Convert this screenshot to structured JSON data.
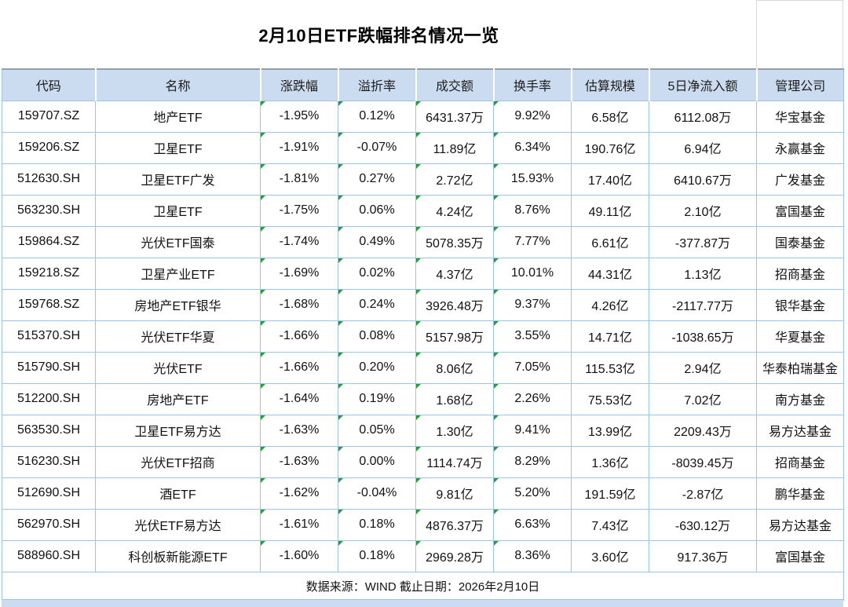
{
  "chart_data": {
    "type": "table",
    "title": "2月10日ETF跌幅排名情况一览",
    "source_note": "数据来源：WIND 截止日期：2026年2月10日",
    "columns": [
      "代码",
      "名称",
      "涨跌幅",
      "溢折率",
      "成交额",
      "换手率",
      "估算规模",
      "5日净流入额",
      "管理公司"
    ],
    "rows": [
      [
        "159707.SZ",
        "地产ETF",
        "-1.95%",
        "0.12%",
        "6431.37万",
        "9.92%",
        "6.58亿",
        "6112.08万",
        "华宝基金"
      ],
      [
        "159206.SZ",
        "卫星ETF",
        "-1.91%",
        "-0.07%",
        "11.89亿",
        "6.34%",
        "190.76亿",
        "6.94亿",
        "永赢基金"
      ],
      [
        "512630.SH",
        "卫星ETF广发",
        "-1.81%",
        "0.27%",
        "2.72亿",
        "15.93%",
        "17.40亿",
        "6410.67万",
        "广发基金"
      ],
      [
        "563230.SH",
        "卫星ETF",
        "-1.75%",
        "0.06%",
        "4.24亿",
        "8.76%",
        "49.11亿",
        "2.10亿",
        "富国基金"
      ],
      [
        "159864.SZ",
        "光伏ETF国泰",
        "-1.74%",
        "0.49%",
        "5078.35万",
        "7.77%",
        "6.61亿",
        "-377.87万",
        "国泰基金"
      ],
      [
        "159218.SZ",
        "卫星产业ETF",
        "-1.69%",
        "0.02%",
        "4.37亿",
        "10.01%",
        "44.31亿",
        "1.13亿",
        "招商基金"
      ],
      [
        "159768.SZ",
        "房地产ETF银华",
        "-1.68%",
        "0.24%",
        "3926.48万",
        "9.37%",
        "4.26亿",
        "-2117.77万",
        "银华基金"
      ],
      [
        "515370.SH",
        "光伏ETF华夏",
        "-1.66%",
        "0.08%",
        "5157.98万",
        "3.55%",
        "14.71亿",
        "-1038.65万",
        "华夏基金"
      ],
      [
        "515790.SH",
        "光伏ETF",
        "-1.66%",
        "0.20%",
        "8.06亿",
        "7.05%",
        "115.53亿",
        "2.94亿",
        "华泰柏瑞基金"
      ],
      [
        "512200.SH",
        "房地产ETF",
        "-1.64%",
        "0.19%",
        "1.68亿",
        "2.26%",
        "75.53亿",
        "7.02亿",
        "南方基金"
      ],
      [
        "563530.SH",
        "卫星ETF易方达",
        "-1.63%",
        "0.05%",
        "1.30亿",
        "9.41%",
        "13.99亿",
        "2209.43万",
        "易方达基金"
      ],
      [
        "516230.SH",
        "光伏ETF招商",
        "-1.63%",
        "0.00%",
        "1114.74万",
        "8.29%",
        "1.36亿",
        "-8039.45万",
        "招商基金"
      ],
      [
        "512690.SH",
        "酒ETF",
        "-1.62%",
        "-0.04%",
        "9.81亿",
        "5.20%",
        "191.59亿",
        "-2.87亿",
        "鹏华基金"
      ],
      [
        "562970.SH",
        "光伏ETF易方达",
        "-1.61%",
        "0.18%",
        "4876.37万",
        "6.63%",
        "7.43亿",
        "-630.12万",
        "易方达基金"
      ],
      [
        "588960.SH",
        "科创板新能源ETF",
        "-1.60%",
        "0.18%",
        "2969.28万",
        "8.36%",
        "3.60亿",
        "917.36万",
        "富国基金"
      ]
    ]
  },
  "flag_columns": [
    2,
    3,
    4,
    5
  ],
  "colors": {
    "header_bg": "#cbdcf1",
    "grid_border": "#9dc3e6",
    "flag_green": "#22a13a",
    "outer_gridline": "#d8d8d8"
  }
}
